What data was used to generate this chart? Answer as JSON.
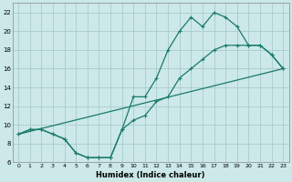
{
  "xlabel": "Humidex (Indice chaleur)",
  "bg_color": "#cce8e8",
  "grid_color": "#aacccc",
  "line_color": "#1a7a6a",
  "xlim": [
    -0.5,
    23.5
  ],
  "ylim": [
    6,
    23
  ],
  "xticks": [
    0,
    1,
    2,
    3,
    4,
    5,
    6,
    7,
    8,
    9,
    10,
    11,
    12,
    13,
    14,
    15,
    16,
    17,
    18,
    19,
    20,
    21,
    22,
    23
  ],
  "yticks": [
    6,
    8,
    10,
    12,
    14,
    16,
    18,
    20,
    22
  ],
  "series1_x": [
    0,
    1,
    2,
    3,
    4,
    5,
    6,
    7,
    8,
    9,
    10,
    11,
    12,
    13,
    14,
    15,
    16,
    17,
    18,
    19,
    20,
    21,
    22,
    23
  ],
  "series1_y": [
    9.0,
    9.5,
    9.5,
    9.0,
    8.5,
    7.0,
    6.5,
    6.5,
    6.5,
    9.5,
    13.0,
    13.0,
    15.0,
    18.0,
    20.0,
    21.5,
    20.5,
    22.0,
    21.5,
    20.5,
    18.5,
    18.5,
    17.5,
    16.0
  ],
  "series2_x": [
    0,
    1,
    2,
    3,
    4,
    5,
    6,
    7,
    8,
    9,
    10,
    11,
    12,
    13,
    14,
    15,
    16,
    17,
    18,
    19,
    20,
    21,
    22,
    23
  ],
  "series2_y": [
    9.0,
    9.5,
    9.5,
    9.0,
    8.5,
    7.0,
    6.5,
    6.5,
    6.5,
    9.5,
    10.5,
    11.0,
    12.5,
    13.0,
    15.0,
    16.0,
    17.0,
    18.0,
    18.5,
    18.5,
    18.5,
    18.5,
    17.5,
    16.0
  ],
  "series3_x": [
    0,
    23
  ],
  "series3_y": [
    9.0,
    16.0
  ]
}
